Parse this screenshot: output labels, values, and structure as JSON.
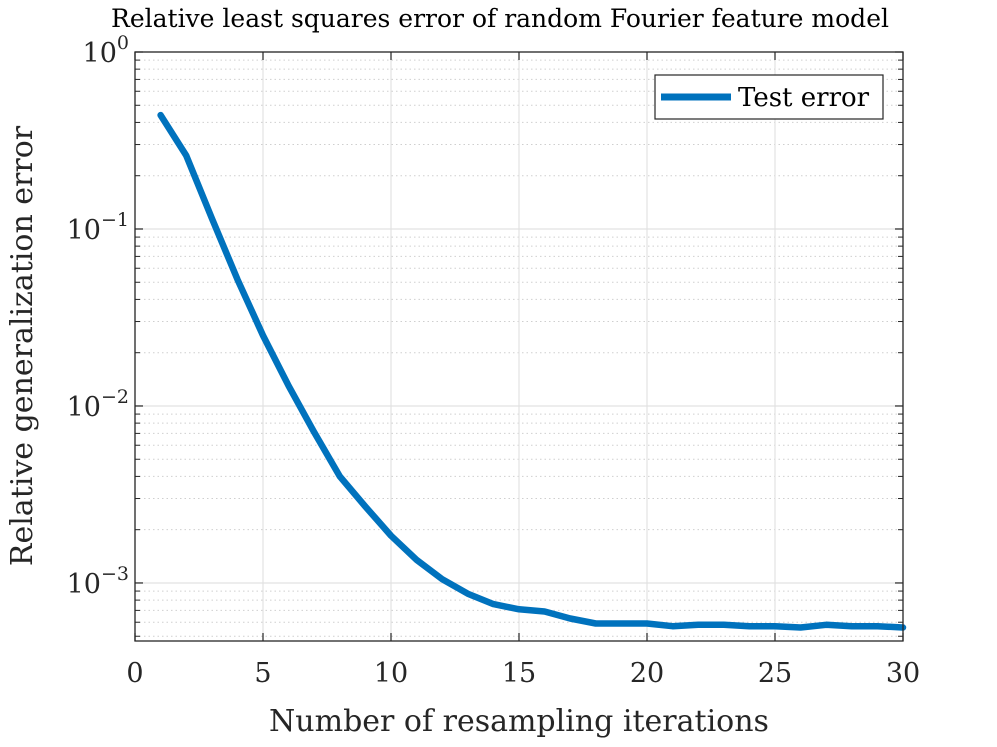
{
  "chart_data": {
    "type": "line",
    "title": "Relative least squares error of random Fourier feature model",
    "xlabel": "Number of resampling iterations",
    "ylabel": "Relative generalization error",
    "xlim": [
      0,
      30
    ],
    "ylim": [
      0.00047,
      1
    ],
    "y_scale": "log",
    "x_ticks": [
      0,
      5,
      10,
      15,
      20,
      25,
      30
    ],
    "x_tick_labels": [
      "0",
      "5",
      "10",
      "15",
      "20",
      "25",
      "30"
    ],
    "y_ticks": [
      {
        "value": 1,
        "base": "10",
        "exponent": "0"
      },
      {
        "value": 0.1,
        "base": "10",
        "exponent": "−1"
      },
      {
        "value": 0.01,
        "base": "10",
        "exponent": "−2"
      },
      {
        "value": 0.001,
        "base": "10",
        "exponent": "−3"
      }
    ],
    "grid": true,
    "minor_grid": true,
    "legend_position": "top-right",
    "series": [
      {
        "name": "Test error",
        "color": "#0072BD",
        "x": [
          1,
          2,
          3,
          4,
          5,
          6,
          7,
          8,
          9,
          10,
          11,
          12,
          13,
          14,
          15,
          16,
          17,
          18,
          19,
          20,
          21,
          22,
          23,
          24,
          25,
          26,
          27,
          28,
          29,
          30
        ],
        "y": [
          0.44,
          0.26,
          0.115,
          0.052,
          0.025,
          0.013,
          0.0071,
          0.004,
          0.0027,
          0.00185,
          0.00135,
          0.00105,
          0.00087,
          0.00076,
          0.00071,
          0.00069,
          0.00063,
          0.00059,
          0.00059,
          0.00059,
          0.00057,
          0.00058,
          0.00058,
          0.00057,
          0.00057,
          0.00056,
          0.00058,
          0.00057,
          0.00057,
          0.00056
        ]
      }
    ]
  }
}
